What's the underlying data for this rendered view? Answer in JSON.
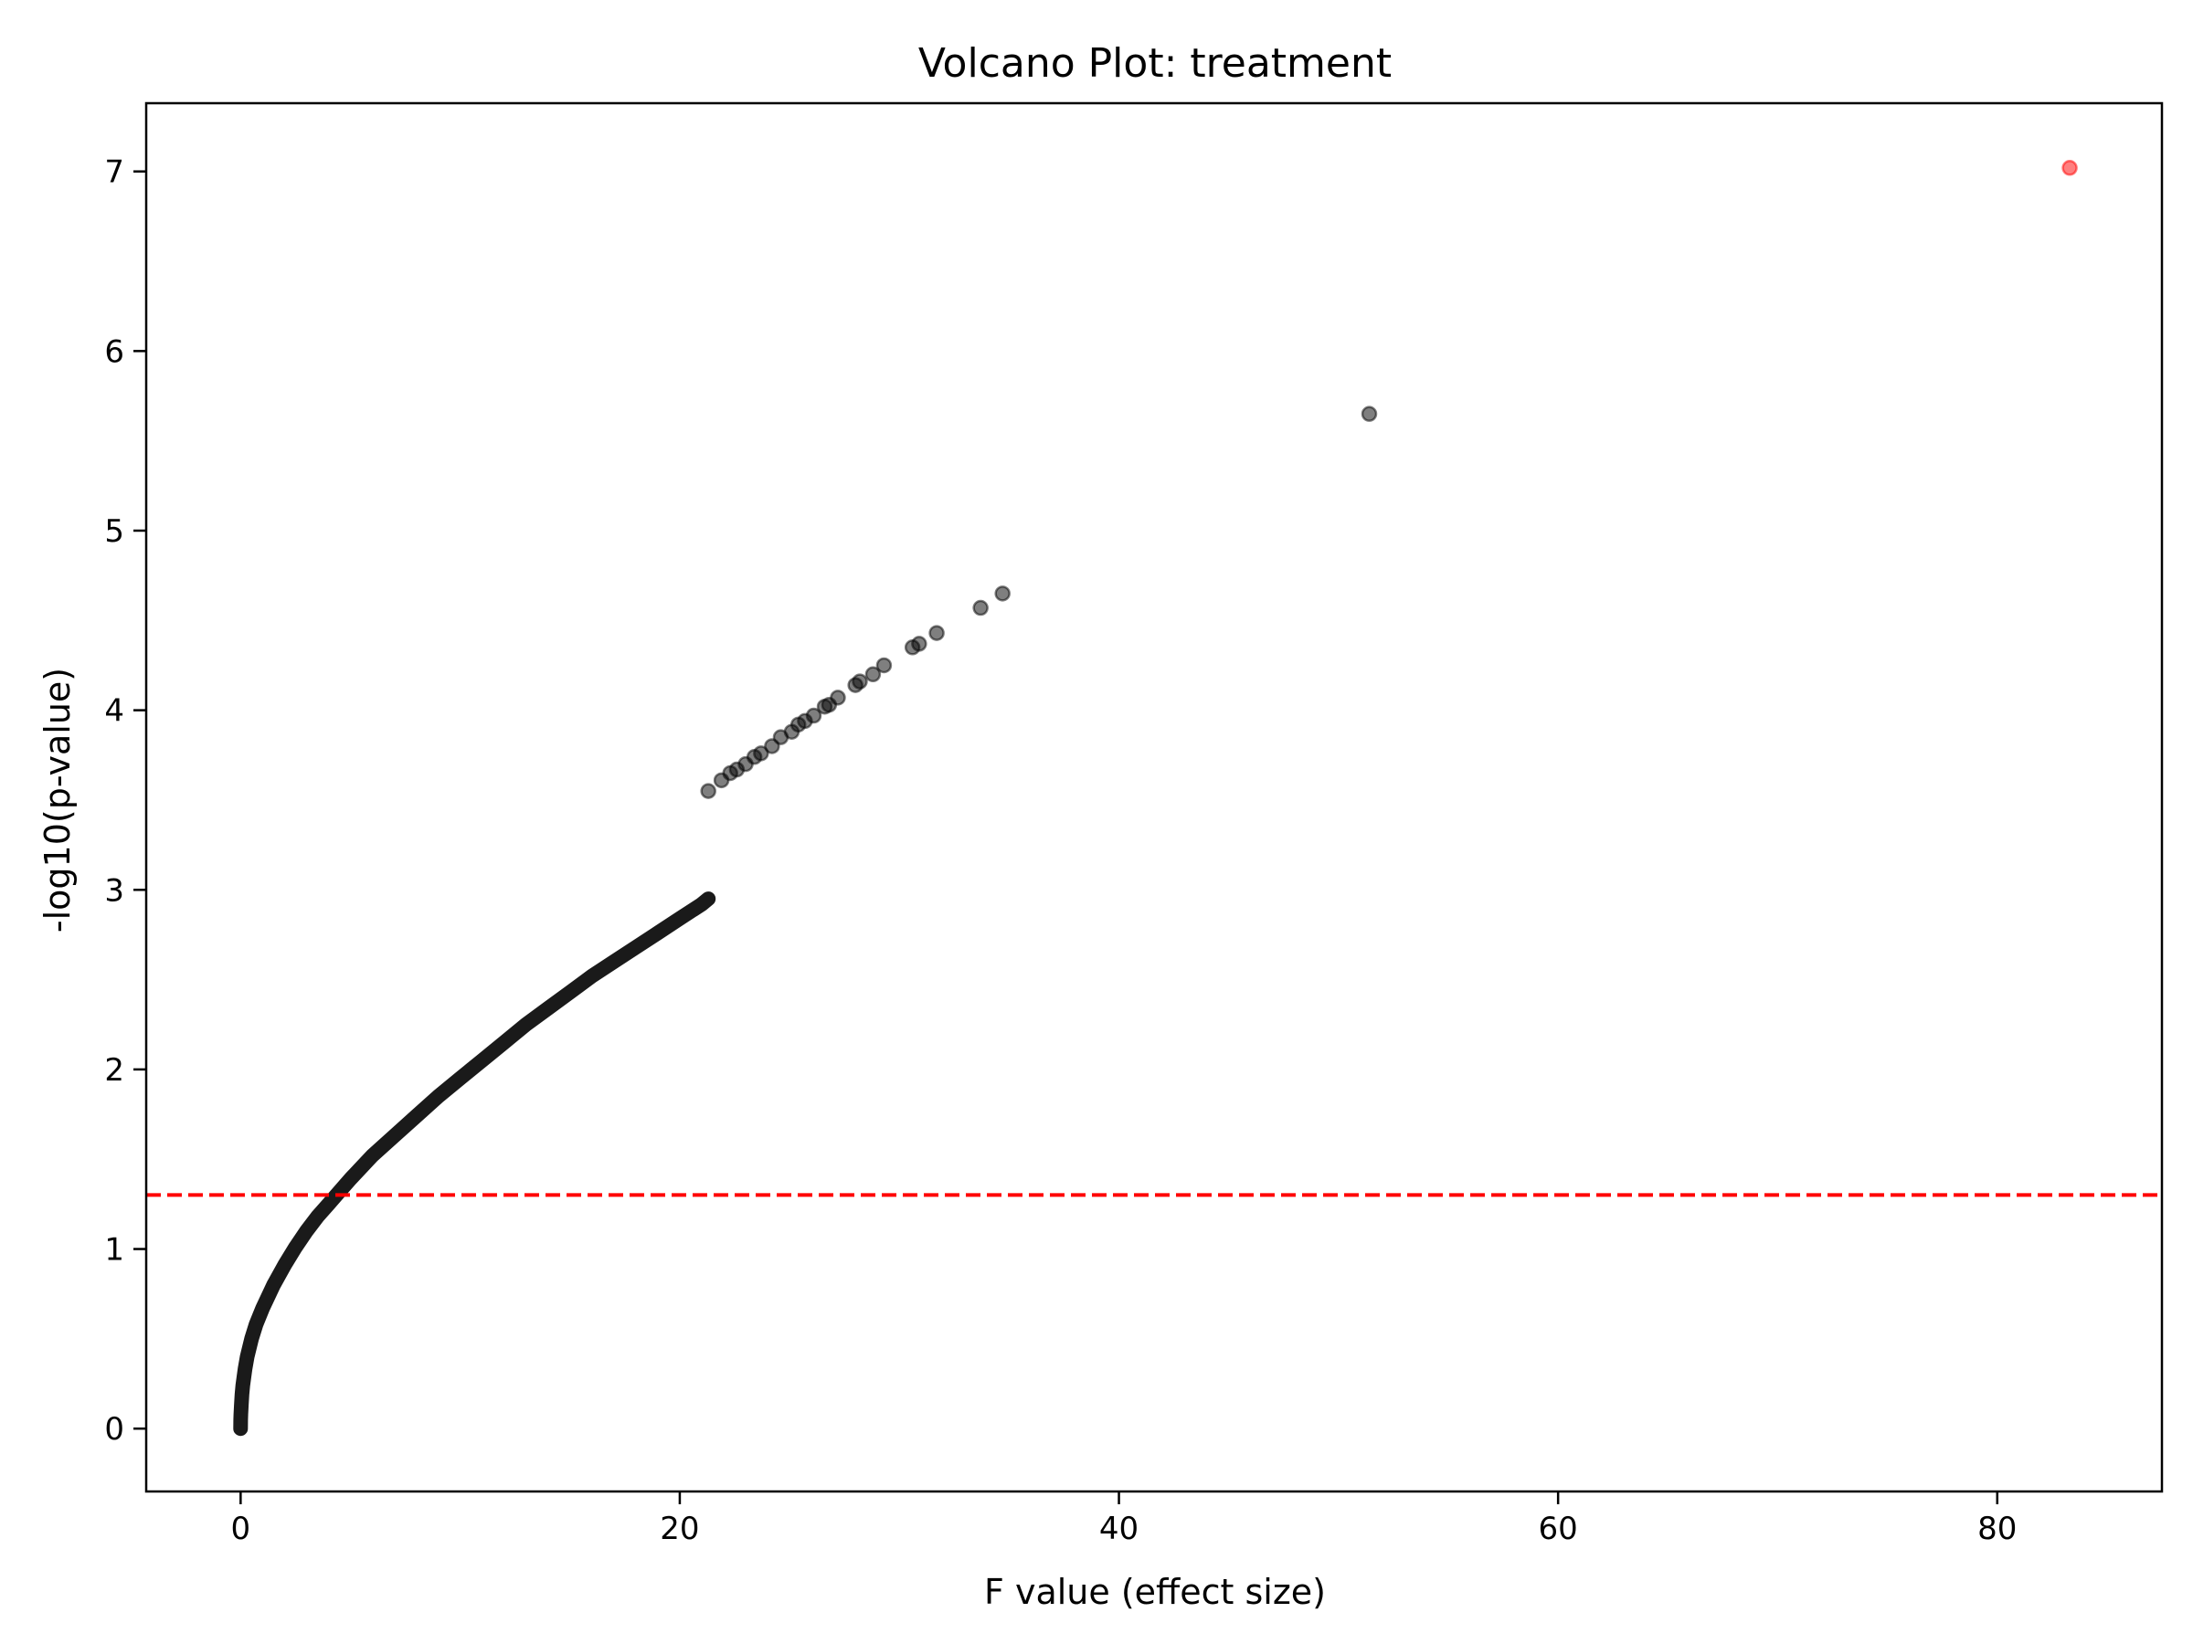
{
  "chart_data": {
    "type": "scatter",
    "title": "Volcano Plot: treatment",
    "xlabel": "F value (effect size)",
    "ylabel": "-log10(p-value)",
    "xlim": [
      -4.3,
      87.5
    ],
    "ylim": [
      -0.35,
      7.38
    ],
    "xticks": [
      0,
      20,
      40,
      60,
      80
    ],
    "yticks": [
      0,
      1,
      2,
      3,
      4,
      5,
      6,
      7
    ],
    "grid": false,
    "legend": "none",
    "threshold": {
      "y": 1.301,
      "color": "#ff0000",
      "style": "dashed"
    },
    "colors": {
      "point": "#000000",
      "highlight": "#ff0000",
      "axes": "#000000"
    },
    "point_opacity": 0.5,
    "series": [
      {
        "curve_points": [
          [
            0.0,
            0.0
          ],
          [
            0.003,
            0.05
          ],
          [
            0.01,
            0.08
          ],
          [
            0.03,
            0.13
          ],
          [
            0.06,
            0.19
          ],
          [
            0.1,
            0.24
          ],
          [
            0.2,
            0.33
          ],
          [
            0.3,
            0.4
          ],
          [
            0.5,
            0.5
          ],
          [
            0.7,
            0.58
          ],
          [
            1.0,
            0.67
          ],
          [
            1.5,
            0.8
          ],
          [
            2.0,
            0.91
          ],
          [
            2.5,
            1.01
          ],
          [
            3.0,
            1.1
          ],
          [
            3.5,
            1.18
          ],
          [
            4.0,
            1.25
          ],
          [
            4.5,
            1.32
          ],
          [
            5.0,
            1.39
          ],
          [
            6.0,
            1.52
          ],
          [
            7.0,
            1.63
          ],
          [
            8.0,
            1.74
          ],
          [
            9.0,
            1.85
          ],
          [
            10.0,
            1.95
          ],
          [
            11.0,
            2.05
          ],
          [
            12.0,
            2.15
          ],
          [
            13.0,
            2.25
          ],
          [
            14.0,
            2.34
          ],
          [
            15.0,
            2.43
          ],
          [
            16.0,
            2.52
          ],
          [
            17.0,
            2.6
          ],
          [
            18.0,
            2.68
          ],
          [
            19.0,
            2.76
          ],
          [
            20.0,
            2.84
          ],
          [
            21.0,
            2.92
          ],
          [
            21.3,
            2.95
          ]
        ],
        "points": [
          [
            21.3,
            3.55
          ],
          [
            21.9,
            3.61
          ],
          [
            22.3,
            3.65
          ],
          [
            22.6,
            3.67
          ],
          [
            23.0,
            3.7
          ],
          [
            23.4,
            3.74
          ],
          [
            23.7,
            3.76
          ],
          [
            24.2,
            3.8
          ],
          [
            24.6,
            3.85
          ],
          [
            25.1,
            3.88
          ],
          [
            25.4,
            3.92
          ],
          [
            25.7,
            3.94
          ],
          [
            26.1,
            3.97
          ],
          [
            26.6,
            4.02
          ],
          [
            26.8,
            4.03
          ],
          [
            27.2,
            4.07
          ],
          [
            28.0,
            4.14
          ],
          [
            28.2,
            4.16
          ],
          [
            28.8,
            4.2
          ],
          [
            29.3,
            4.25
          ],
          [
            30.6,
            4.35
          ],
          [
            30.9,
            4.37
          ],
          [
            31.7,
            4.43
          ],
          [
            33.7,
            4.57
          ],
          [
            34.7,
            4.65
          ],
          [
            51.4,
            5.65
          ]
        ],
        "highlight_points": [
          [
            83.3,
            7.02
          ]
        ]
      }
    ]
  }
}
